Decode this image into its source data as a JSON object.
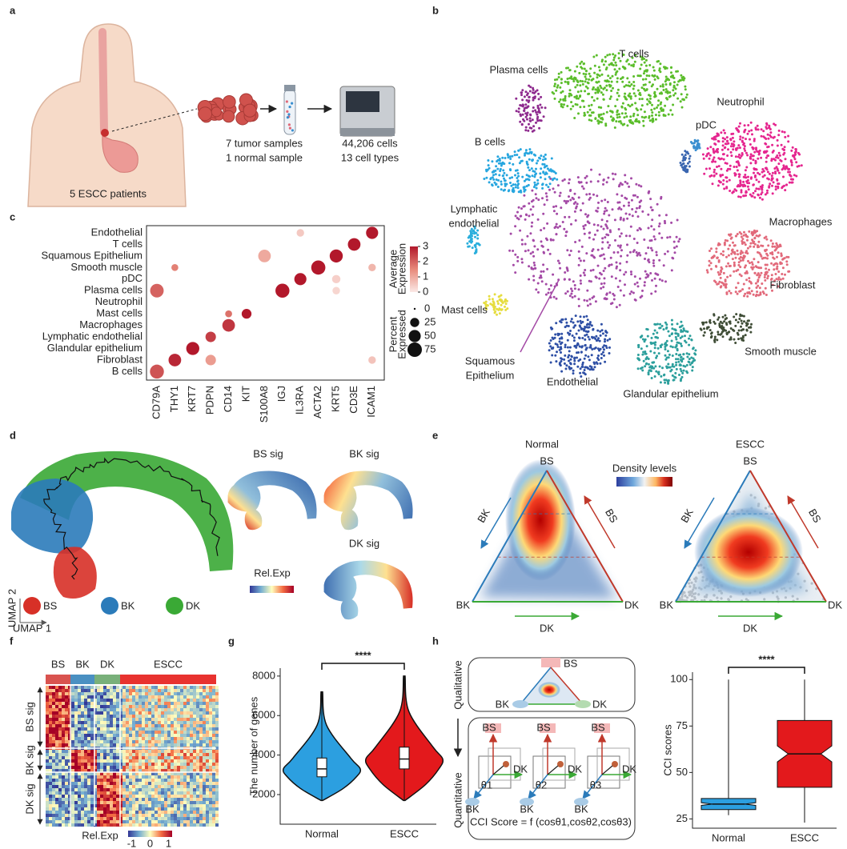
{
  "panel_letters": [
    "a",
    "b",
    "c",
    "d",
    "e",
    "f",
    "g",
    "h"
  ],
  "a": {
    "patients": "5 ESCC patients",
    "samples": [
      "7 tumor samples",
      "1 normal sample"
    ],
    "result": [
      "44,206 cells",
      "13 cell types"
    ]
  },
  "b": {
    "clusters": [
      {
        "label": [
          "T cells"
        ],
        "color": "#5bbd2b"
      },
      {
        "label": [
          "Plasma cells"
        ],
        "color": "#8e2a8e"
      },
      {
        "label": [
          "Neutrophil"
        ],
        "color": "#3a66b0"
      },
      {
        "label": [
          "pDC"
        ],
        "color": "#3a8fd0"
      },
      {
        "label": [
          "B cells"
        ],
        "color": "#27a6df"
      },
      {
        "label": [
          "Lymphatic",
          "endothelial"
        ],
        "color": "#2aaedc"
      },
      {
        "label": [
          "Macrophages"
        ],
        "color": "#e5268f"
      },
      {
        "label": [
          "Fibroblast"
        ],
        "color": "#e26a7b"
      },
      {
        "label": [
          "Mast cells"
        ],
        "color": "#e6dd3f"
      },
      {
        "label": [
          "Squamous",
          "Epithelium"
        ],
        "color": "#a44aa6"
      },
      {
        "label": [
          "Endothelial"
        ],
        "color": "#2e4fa5"
      },
      {
        "label": [
          "Glandular epithelium"
        ],
        "color": "#2c9f9c"
      },
      {
        "label": [
          "Smooth muscle"
        ],
        "color": "#3f4d36"
      }
    ]
  },
  "chart_data": [
    {
      "type": "dot",
      "categories": [
        "CD79A",
        "THY1",
        "KRT7",
        "PDPN",
        "CD14",
        "KIT",
        "S100A8",
        "IGJ",
        "IL3RA",
        "ACTA2",
        "KRT5",
        "CD3E",
        "ICAM1"
      ],
      "y_categories": [
        "Endothelial",
        "T cells",
        "Squamous Epithelium",
        "Smooth muscle",
        "pDC",
        "Plasma cells",
        "Neutrophil",
        "Mast cells",
        "Macrophages",
        "Lymphatic endothelial",
        "Glandular epithelium",
        "Fibroblast",
        "B cells"
      ],
      "points": [
        {
          "x": "CD79A",
          "y": "B cells",
          "expression": 2.2,
          "percent": 70
        },
        {
          "x": "CD79A",
          "y": "Plasma cells",
          "expression": 2.0,
          "percent": 65
        },
        {
          "x": "THY1",
          "y": "Fibroblast",
          "expression": 2.8,
          "percent": 55
        },
        {
          "x": "THY1",
          "y": "Smooth muscle",
          "expression": 1.6,
          "percent": 12
        },
        {
          "x": "KRT7",
          "y": "Glandular epithelium",
          "expression": 3,
          "percent": 60
        },
        {
          "x": "PDPN",
          "y": "Lymphatic endothelial",
          "expression": 2.5,
          "percent": 35
        },
        {
          "x": "PDPN",
          "y": "Fibroblast",
          "expression": 1.2,
          "percent": 35
        },
        {
          "x": "CD14",
          "y": "Macrophages",
          "expression": 2.6,
          "percent": 55
        },
        {
          "x": "CD14",
          "y": "Mast cells",
          "expression": 1.8,
          "percent": 12
        },
        {
          "x": "KIT",
          "y": "Mast cells",
          "expression": 3,
          "percent": 30
        },
        {
          "x": "S100A8",
          "y": "Squamous Epithelium",
          "expression": 1.0,
          "percent": 55
        },
        {
          "x": "IGJ",
          "y": "Plasma cells",
          "expression": 3,
          "percent": 70
        },
        {
          "x": "IL3RA",
          "y": "pDC",
          "expression": 3,
          "percent": 50
        },
        {
          "x": "IL3RA",
          "y": "Endothelial",
          "expression": 0.5,
          "percent": 15
        },
        {
          "x": "ACTA2",
          "y": "Smooth muscle",
          "expression": 3,
          "percent": 72
        },
        {
          "x": "KRT5",
          "y": "Squamous Epithelium",
          "expression": 3,
          "percent": 60
        },
        {
          "x": "KRT5",
          "y": "pDC",
          "expression": 0.4,
          "percent": 20
        },
        {
          "x": "KRT5",
          "y": "Plasma cells",
          "expression": 0.3,
          "percent": 15
        },
        {
          "x": "CD3E",
          "y": "T cells",
          "expression": 3,
          "percent": 55
        },
        {
          "x": "ICAM1",
          "y": "Endothelial",
          "expression": 3,
          "percent": 50
        },
        {
          "x": "ICAM1",
          "y": "Smooth muscle",
          "expression": 0.8,
          "percent": 15
        },
        {
          "x": "ICAM1",
          "y": "Fibroblast",
          "expression": 0.6,
          "percent": 15
        }
      ],
      "color_label": [
        "Average",
        "Expression"
      ],
      "color_lim": [
        0,
        3
      ],
      "color_ticks": [
        0,
        1,
        2,
        3
      ],
      "size_label": [
        "Percent",
        "Expressed"
      ],
      "size_ticks": [
        0,
        25,
        50,
        75
      ]
    },
    {
      "type": "violin",
      "ylabel": "The number of genes",
      "categories": [
        "Normal",
        "ESCC"
      ],
      "colors": [
        "#2c9fe0",
        "#e3191c"
      ],
      "stats": [
        {
          "min": 1700,
          "q1": 2900,
          "median": 3300,
          "q3": 3850,
          "max": 7200
        },
        {
          "min": 1700,
          "q1": 3300,
          "median": 3800,
          "q3": 4400,
          "max": 8000
        }
      ],
      "ylim": [
        500,
        8400
      ],
      "yticks": [
        2000,
        4000,
        6000,
        8000
      ],
      "significance": "****"
    },
    {
      "type": "box",
      "ylabel": "CCI scores",
      "categories": [
        "Normal",
        "ESCC"
      ],
      "colors": [
        "#2c9fe0",
        "#e3191c"
      ],
      "stats": [
        {
          "min": 27,
          "q1": 30,
          "median": 33,
          "q3": 36,
          "max": 100
        },
        {
          "min": 23,
          "q1": 42,
          "median": 60,
          "q3": 78,
          "max": 100
        }
      ],
      "ylim": [
        20,
        104
      ],
      "yticks": [
        25,
        50,
        75,
        100
      ],
      "significance": "****"
    }
  ],
  "d": {
    "signatures": [
      "BS sig",
      "BK sig",
      "DK sig"
    ],
    "colorbar_label": "Rel.Exp",
    "axes": [
      "UMAP 2",
      "UMAP 1"
    ],
    "legend": [
      {
        "label": "BS",
        "color": "#d73027"
      },
      {
        "label": "BK",
        "color": "#2b7bba"
      },
      {
        "label": "DK",
        "color": "#3aa935"
      }
    ]
  },
  "e": {
    "titles": [
      "Normal",
      "ESCC"
    ],
    "colorbar_label": "Density levels",
    "vertices": [
      "BS",
      "BK",
      "DK"
    ]
  },
  "f": {
    "columns": [
      "BS",
      "BK",
      "DK",
      "ESCC"
    ],
    "rows": [
      "BS sig",
      "BK sig",
      "DK sig"
    ],
    "colorbar_label": "Rel.Exp",
    "colorbar_ticks": [
      -1,
      0,
      1
    ]
  },
  "h": {
    "stages": [
      "Qualitative",
      "Quantitative"
    ],
    "vertices": [
      "BS",
      "BK",
      "DK"
    ],
    "angles": [
      "θ1",
      "θ2",
      "θ3"
    ],
    "formula": "CCI Score = f (cosθ1,cosθ2,cosθ3)"
  }
}
